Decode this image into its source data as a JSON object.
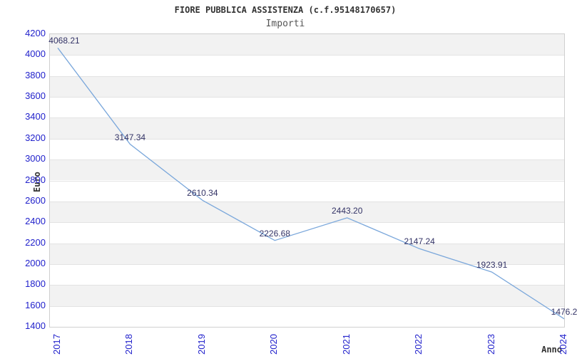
{
  "chart_data": {
    "type": "line",
    "title": "FIORE PUBBLICA ASSISTENZA (c.f.95148170657)",
    "subtitle": "Importi",
    "xlabel": "Anno",
    "ylabel": "Euro",
    "categories": [
      "2017",
      "2018",
      "2019",
      "2020",
      "2021",
      "2022",
      "2023",
      "2024"
    ],
    "values": [
      4068.21,
      3147.34,
      2610.34,
      2226.68,
      2443.2,
      2147.24,
      1923.91,
      1476.2
    ],
    "point_labels": [
      "4068.21",
      "3147.34",
      "2610.34",
      "2226.68",
      "2443.20",
      "2147.24",
      "1923.91",
      "1476.2"
    ],
    "ylim": [
      1400,
      4200
    ],
    "ytick_step": 200,
    "yticks": [
      "4200",
      "4000",
      "3800",
      "3600",
      "3400",
      "3200",
      "3000",
      "2800",
      "2600",
      "2400",
      "2200",
      "2000",
      "1800",
      "1600",
      "1400"
    ],
    "xtick_rotation_deg": -90,
    "legend": "none",
    "grid": "alternating-horizontal-bands",
    "label_dx": [
      9,
      0,
      0,
      0,
      0,
      0,
      0,
      0
    ],
    "colors": {
      "line": "#7aa7db",
      "tick_label": "#2222cc",
      "data_label": "#333366",
      "band_fill": "#f2f2f2",
      "band_alt_fill": "#ffffff",
      "grid_line": "#e3e3e3",
      "plot_border": "#cfcfcf",
      "title": "#333333",
      "subtitle": "#555555",
      "axis_label": "#333333",
      "background": "#ffffff"
    }
  }
}
